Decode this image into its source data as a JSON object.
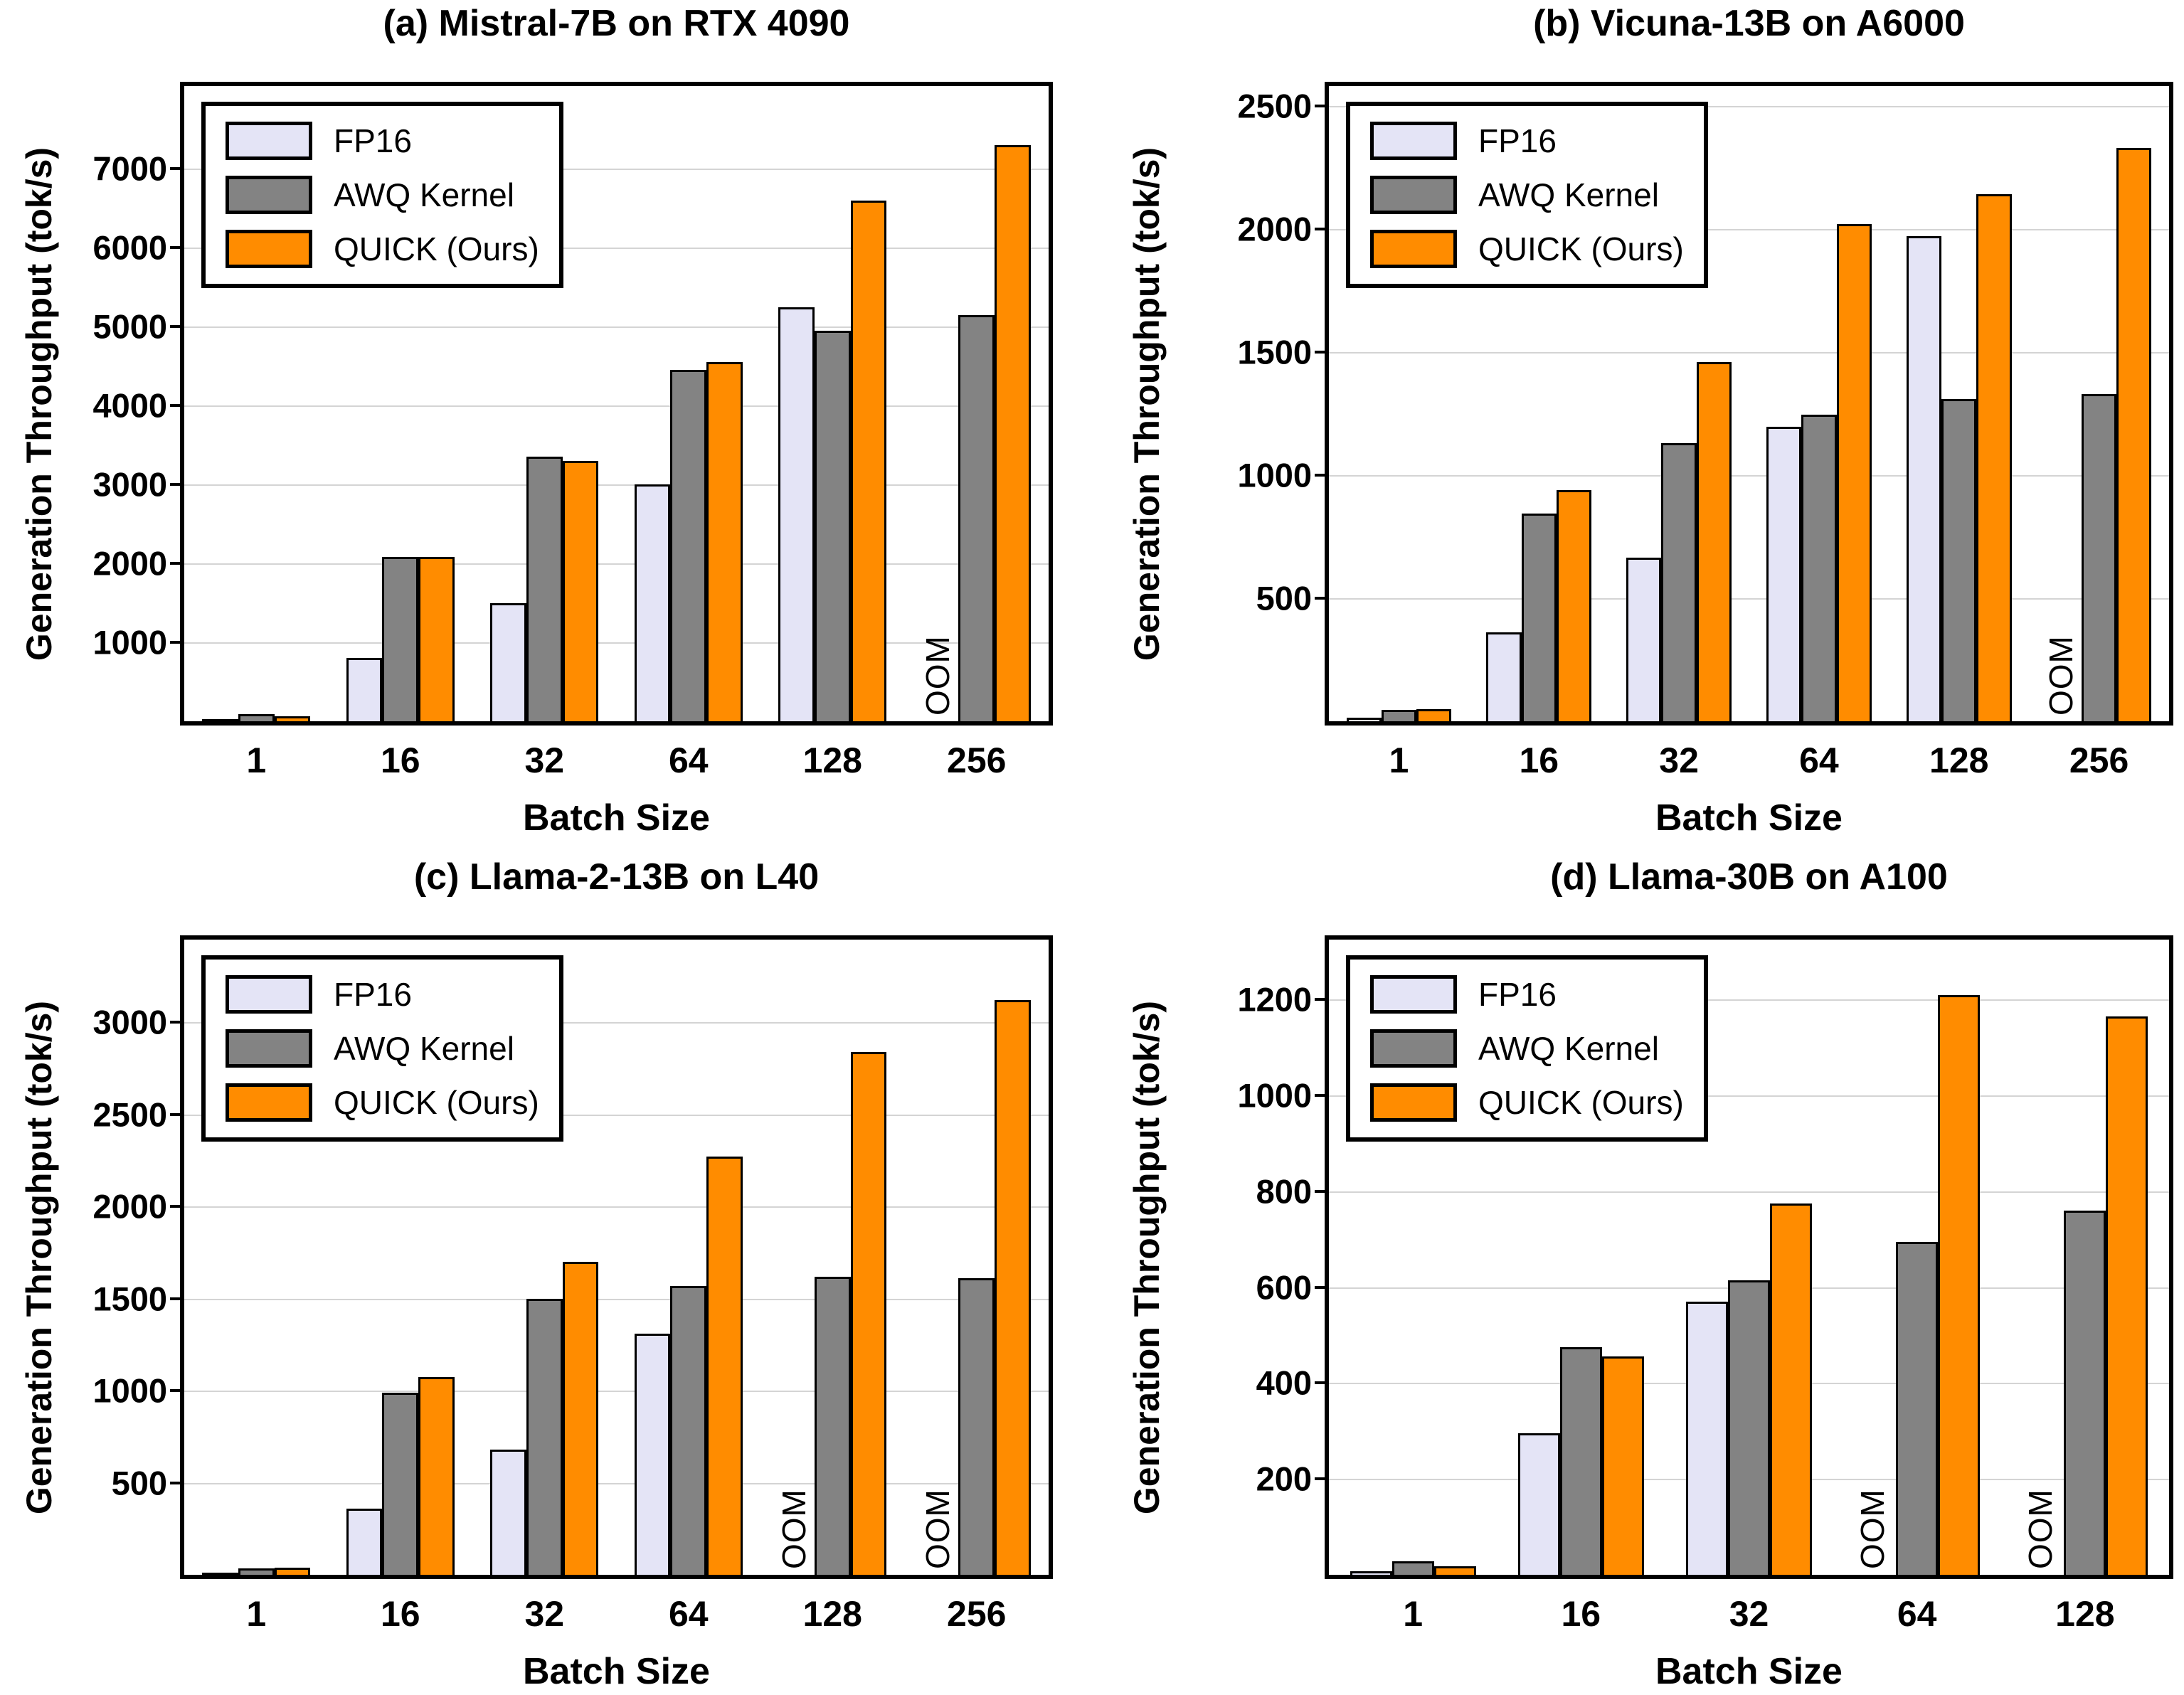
{
  "figure": {
    "background": "#ffffff",
    "grid_color": "#D4D4D4",
    "axis_color": "#000000"
  },
  "legend": {
    "items": [
      {
        "label": "FP16",
        "color": "#E4E4F6"
      },
      {
        "label": "AWQ Kernel",
        "color": "#838383"
      },
      {
        "label": "QUICK (Ours)",
        "color": "#FF8C00"
      }
    ]
  },
  "chart_data": [
    {
      "type": "bar",
      "title": "(a) Mistral-7B on RTX 4090",
      "xlabel": "Batch Size",
      "ylabel": "Generation Throughput (tok/s)",
      "categories": [
        "1",
        "16",
        "32",
        "64",
        "128",
        "256"
      ],
      "yticks": [
        1000,
        2000,
        3000,
        4000,
        5000,
        6000,
        7000
      ],
      "ylim": [
        0,
        8050
      ],
      "grid": true,
      "legend_position": "upper-left",
      "oom_text": "OOM",
      "series": [
        {
          "name": "FP16",
          "color": "#E4E4F6",
          "values": [
            20,
            800,
            1500,
            3000,
            5250,
            null
          ]
        },
        {
          "name": "AWQ Kernel",
          "color": "#838383",
          "values": [
            90,
            2080,
            3350,
            4450,
            4950,
            5150
          ]
        },
        {
          "name": "QUICK (Ours)",
          "color": "#FF8C00",
          "values": [
            60,
            2080,
            3300,
            4550,
            6600,
            7300
          ]
        }
      ]
    },
    {
      "type": "bar",
      "title": "(b) Vicuna-13B on A6000",
      "xlabel": "Batch Size",
      "ylabel": "Generation Throughput (tok/s)",
      "categories": [
        "1",
        "16",
        "32",
        "64",
        "128",
        "256"
      ],
      "yticks": [
        500,
        1000,
        1500,
        2000,
        2500
      ],
      "ylim": [
        0,
        2580
      ],
      "grid": true,
      "legend_position": "upper-left",
      "oom_text": "OOM",
      "series": [
        {
          "name": "FP16",
          "color": "#E4E4F6",
          "values": [
            15,
            360,
            665,
            1195,
            1970,
            null
          ]
        },
        {
          "name": "AWQ Kernel",
          "color": "#838383",
          "values": [
            45,
            845,
            1130,
            1245,
            1310,
            1330
          ]
        },
        {
          "name": "QUICK (Ours)",
          "color": "#FF8C00",
          "values": [
            48,
            940,
            1460,
            2020,
            2140,
            2330
          ]
        }
      ]
    },
    {
      "type": "bar",
      "title": "(c) Llama-2-13B on L40",
      "xlabel": "Batch Size",
      "ylabel": "Generation Throughput (tok/s)",
      "categories": [
        "1",
        "16",
        "32",
        "64",
        "128",
        "256"
      ],
      "yticks": [
        500,
        1000,
        1500,
        2000,
        2500,
        3000
      ],
      "ylim": [
        0,
        3450
      ],
      "grid": true,
      "legend_position": "upper-left",
      "oom_text": "OOM",
      "series": [
        {
          "name": "FP16",
          "color": "#E4E4F6",
          "values": [
            12,
            360,
            680,
            1310,
            null,
            null
          ]
        },
        {
          "name": "AWQ Kernel",
          "color": "#838383",
          "values": [
            35,
            990,
            1500,
            1570,
            1620,
            1610
          ]
        },
        {
          "name": "QUICK (Ours)",
          "color": "#FF8C00",
          "values": [
            38,
            1075,
            1700,
            2270,
            2840,
            3120
          ]
        }
      ]
    },
    {
      "type": "bar",
      "title": "(d) Llama-30B on A100",
      "xlabel": "Batch Size",
      "ylabel": "Generation Throughput (tok/s)",
      "categories": [
        "1",
        "16",
        "32",
        "64",
        "128"
      ],
      "yticks": [
        200,
        400,
        600,
        800,
        1000,
        1200
      ],
      "ylim": [
        0,
        1325
      ],
      "grid": true,
      "legend_position": "upper-left",
      "oom_text": "OOM",
      "series": [
        {
          "name": "FP16",
          "color": "#E4E4F6",
          "values": [
            8,
            295,
            570,
            null,
            null
          ]
        },
        {
          "name": "AWQ Kernel",
          "color": "#838383",
          "values": [
            28,
            475,
            615,
            695,
            760
          ]
        },
        {
          "name": "QUICK (Ours)",
          "color": "#FF8C00",
          "values": [
            18,
            455,
            775,
            1210,
            1165
          ]
        }
      ]
    }
  ]
}
